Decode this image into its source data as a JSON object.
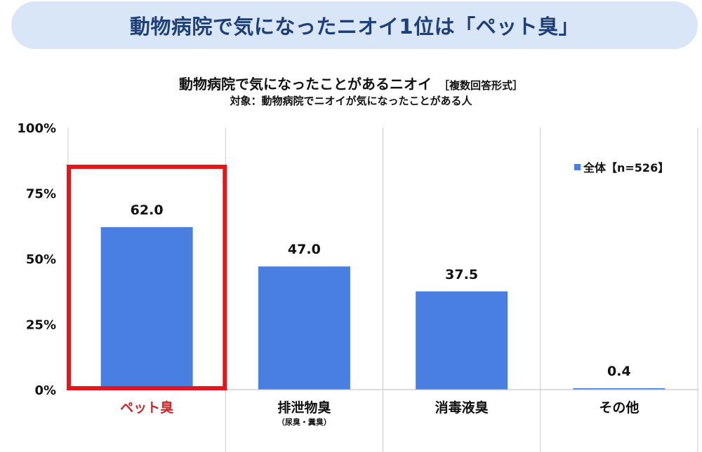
{
  "banner": {
    "title": "動物病院で気になったニオイ1位は「ペット臭」"
  },
  "chart_data": {
    "type": "bar",
    "title": "動物病院で気になったことがあるニオイ",
    "title_note": "［複数回答形式］",
    "subtitle": "対象：動物病院でニオイが気になったことがある人",
    "categories": [
      "ペット臭",
      "排泄物臭",
      "消毒液臭",
      "その他"
    ],
    "category_notes": [
      "",
      "（尿臭・糞臭）",
      "",
      ""
    ],
    "series": [
      {
        "name": "全体【n=526】",
        "values": [
          62.0,
          47.0,
          37.5,
          0.4
        ]
      }
    ],
    "value_labels": [
      "62.0",
      "47.0",
      "37.5",
      "0.4"
    ],
    "ylim": [
      0,
      100
    ],
    "yticks": [
      0,
      25,
      50,
      75,
      100
    ],
    "ytick_labels": [
      "0%",
      "25%",
      "50%",
      "75%",
      "100%"
    ],
    "grid": "vertical separators",
    "legend_position": "top-right",
    "highlight_index": 0,
    "colors": {
      "bar": "#4a7fe2",
      "highlight": "#e8141b",
      "highlight_text": "#d0272a",
      "grid": "#cccccc"
    }
  }
}
